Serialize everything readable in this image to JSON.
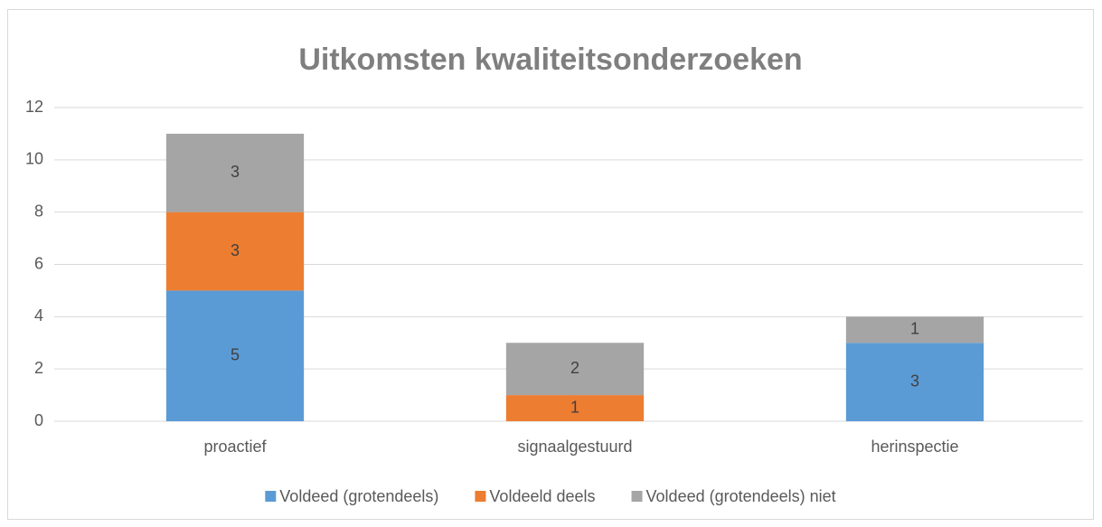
{
  "chart_data": {
    "type": "stacked_bar",
    "title": "Uitkomsten kwaliteitsonderzoeken",
    "categories": [
      "proactief",
      "signaalgestuurd",
      "herinspectie"
    ],
    "series": [
      {
        "name": "Voldeed (grotendeels)",
        "color": "#5b9bd5",
        "values": [
          5,
          null,
          3
        ]
      },
      {
        "name": "Voldeeld deels",
        "color": "#ed7d31",
        "values": [
          3,
          1,
          null
        ]
      },
      {
        "name": "Voldeed (grotendeels) niet",
        "color": "#a5a5a5",
        "values": [
          3,
          2,
          1
        ]
      }
    ],
    "ylim": [
      0,
      12
    ],
    "yticks": [
      0,
      2,
      4,
      6,
      8,
      10,
      12
    ],
    "grid": true,
    "legend": "bottom"
  }
}
